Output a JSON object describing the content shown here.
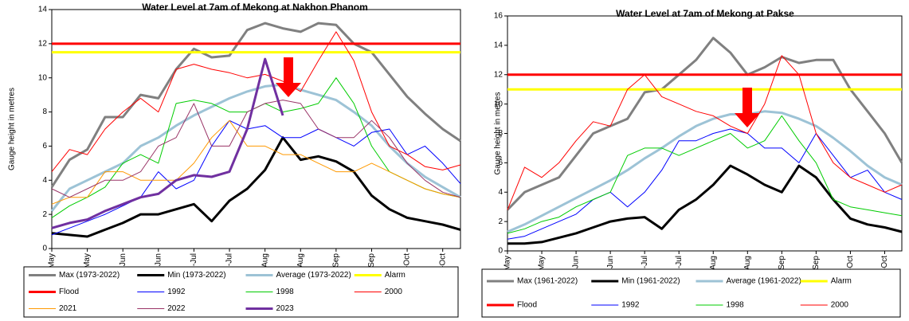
{
  "chart_data": [
    {
      "type": "line",
      "title": "Water Level at 7am of Mekong at Nakhon Phanom",
      "y_label": "Gauge height in metres",
      "categories": [
        "15-May",
        null,
        "30-May",
        null,
        "14-Jun",
        null,
        "29-Jun",
        null,
        "14-Jul",
        null,
        "29-Jul",
        null,
        "13-Aug",
        null,
        "28-Aug",
        null,
        "12-Sep",
        null,
        "27-Sep",
        null,
        "12-Oct",
        null,
        "27-Oct",
        null
      ],
      "ylim": [
        0,
        14
      ],
      "yticks": [
        0,
        2,
        4,
        6,
        8,
        10,
        12,
        14
      ],
      "series": [
        {
          "name": "Max (1973-2022)",
          "color": "#808080",
          "width": 3,
          "values": [
            3.6,
            5.2,
            5.8,
            7.7,
            7.7,
            9.0,
            8.8,
            10.5,
            11.7,
            11.2,
            11.3,
            12.8,
            13.2,
            12.9,
            12.7,
            13.2,
            13.1,
            12.0,
            11.5,
            10.2,
            8.9,
            7.9,
            7.0,
            6.3
          ]
        },
        {
          "name": "Min (1973-2022)",
          "color": "#000000",
          "width": 3,
          "values": [
            0.9,
            0.8,
            0.7,
            1.1,
            1.5,
            2.0,
            2.0,
            2.3,
            2.6,
            1.6,
            2.8,
            3.5,
            4.6,
            6.5,
            5.2,
            5.4,
            5.1,
            4.5,
            3.1,
            2.3,
            1.8,
            1.6,
            1.4,
            1.1
          ]
        },
        {
          "name": "Average (1973-2022)",
          "color": "#9dc3d6",
          "width": 3,
          "values": [
            2.2,
            3.5,
            4.0,
            4.5,
            5.0,
            6.0,
            6.5,
            7.2,
            7.8,
            8.3,
            8.8,
            9.2,
            9.5,
            9.6,
            9.3,
            9.0,
            8.7,
            8.0,
            7.2,
            6.0,
            5.0,
            4.2,
            3.6,
            3.0
          ]
        },
        {
          "name": "Alarm",
          "color": "#ffff00",
          "width": 3,
          "values": [
            11.5,
            11.5,
            11.5,
            11.5,
            11.5,
            11.5,
            11.5,
            11.5,
            11.5,
            11.5,
            11.5,
            11.5,
            11.5,
            11.5,
            11.5,
            11.5,
            11.5,
            11.5,
            11.5,
            11.5,
            11.5,
            11.5,
            11.5,
            11.5
          ]
        },
        {
          "name": "Flood",
          "color": "#ff0000",
          "width": 3,
          "values": [
            12,
            12,
            12,
            12,
            12,
            12,
            12,
            12,
            12,
            12,
            12,
            12,
            12,
            12,
            12,
            12,
            12,
            12,
            12,
            12,
            12,
            12,
            12,
            12
          ]
        },
        {
          "name": "1992",
          "color": "#0000ff",
          "width": 1,
          "values": [
            0.8,
            1.2,
            1.6,
            2.0,
            2.5,
            3.0,
            4.5,
            3.5,
            4.0,
            6.0,
            7.5,
            7.0,
            7.2,
            6.5,
            6.5,
            7.0,
            6.5,
            6.0,
            6.8,
            7.0,
            5.5,
            6.0,
            5.0,
            3.8
          ]
        },
        {
          "name": "1998",
          "color": "#00cc00",
          "width": 1,
          "values": [
            1.8,
            2.5,
            3.0,
            3.6,
            5.0,
            5.5,
            5.0,
            8.5,
            8.7,
            8.5,
            8.0,
            8.0,
            8.5,
            8.0,
            8.2,
            8.5,
            10.0,
            8.5,
            6.0,
            4.5,
            4.0,
            3.5,
            3.2,
            3.0
          ]
        },
        {
          "name": "2000",
          "color": "#ff0000",
          "width": 1,
          "values": [
            4.5,
            5.8,
            5.5,
            7.0,
            8.0,
            8.8,
            8.0,
            10.5,
            10.8,
            10.5,
            10.3,
            10.0,
            10.2,
            9.8,
            9.2,
            11.0,
            12.7,
            11.0,
            8.0,
            6.0,
            5.5,
            4.8,
            4.6,
            4.9
          ]
        },
        {
          "name": "2021",
          "color": "#ff9900",
          "width": 1,
          "values": [
            2.6,
            3.0,
            3.0,
            4.5,
            4.5,
            4.0,
            4.0,
            4.0,
            5.0,
            6.5,
            7.5,
            6.0,
            6.0,
            5.5,
            5.5,
            5.0,
            4.5,
            4.5,
            5.0,
            4.5,
            4.0,
            3.5,
            3.2,
            3.0
          ]
        },
        {
          "name": "2022",
          "color": "#993366",
          "width": 1,
          "values": [
            3.5,
            3.0,
            3.5,
            4.0,
            4.0,
            4.5,
            6.0,
            6.5,
            8.5,
            6.0,
            6.0,
            8.0,
            8.5,
            8.7,
            8.5,
            7.0,
            6.5,
            6.5,
            7.5,
            6.5,
            5.0,
            4.0,
            3.3,
            3.0
          ]
        },
        {
          "name": "2023",
          "color": "#7030a0",
          "width": 3,
          "values": [
            1.2,
            1.5,
            1.7,
            2.2,
            2.6,
            3.0,
            3.2,
            4.0,
            4.3,
            4.2,
            4.5,
            7.0,
            11.1,
            7.8,
            null,
            null,
            null,
            null,
            null,
            null,
            null,
            null,
            null,
            null
          ]
        }
      ]
    },
    {
      "type": "line",
      "title": "Water Level at 7am of Mekong at Pakse",
      "y_label": "Gauge height in metres",
      "categories": [
        "15-May",
        null,
        "30-May",
        null,
        "14-Jun",
        null,
        "29-Jun",
        null,
        "14-Jul",
        null,
        "29-Jul",
        null,
        "13-Aug",
        null,
        "28-Aug",
        null,
        "12-Sep",
        null,
        "27-Sep",
        null,
        "12-Oct",
        null,
        "27-Oct",
        null
      ],
      "ylim": [
        0,
        16
      ],
      "yticks": [
        0,
        2,
        4,
        6,
        8,
        10,
        12,
        14,
        16
      ],
      "series": [
        {
          "name": "Max (1961-2022)",
          "color": "#808080",
          "width": 3,
          "values": [
            2.8,
            4.0,
            4.5,
            5.0,
            6.5,
            8.0,
            8.5,
            9.0,
            10.8,
            11.0,
            12.0,
            13.0,
            14.5,
            13.5,
            12.0,
            12.5,
            13.2,
            12.8,
            13.0,
            13.0,
            11.0,
            9.5,
            8.0,
            6.0
          ]
        },
        {
          "name": "Min (1961-2022)",
          "color": "#000000",
          "width": 3,
          "values": [
            0.5,
            0.5,
            0.6,
            0.9,
            1.2,
            1.6,
            2.0,
            2.2,
            2.3,
            1.5,
            2.8,
            3.5,
            4.5,
            5.8,
            5.2,
            4.5,
            4.0,
            5.8,
            5.0,
            3.5,
            2.2,
            1.8,
            1.6,
            1.3
          ]
        },
        {
          "name": "Average (1961-2022)",
          "color": "#9dc3d6",
          "width": 3,
          "values": [
            1.3,
            1.8,
            2.4,
            3.0,
            3.6,
            4.2,
            4.8,
            5.5,
            6.3,
            7.0,
            7.8,
            8.5,
            9.0,
            9.3,
            9.3,
            9.5,
            9.4,
            9.0,
            8.5,
            7.7,
            6.8,
            5.8,
            5.0,
            4.5
          ]
        },
        {
          "name": "Alarm",
          "color": "#ffff00",
          "width": 3,
          "values": [
            11,
            11,
            11,
            11,
            11,
            11,
            11,
            11,
            11,
            11,
            11,
            11,
            11,
            11,
            11,
            11,
            11,
            11,
            11,
            11,
            11,
            11,
            11,
            11
          ]
        },
        {
          "name": "Flood",
          "color": "#ff0000",
          "width": 3,
          "values": [
            12,
            12,
            12,
            12,
            12,
            12,
            12,
            12,
            12,
            12,
            12,
            12,
            12,
            12,
            12,
            12,
            12,
            12,
            12,
            12,
            12,
            12,
            12,
            12
          ]
        },
        {
          "name": "1992",
          "color": "#0000ff",
          "width": 1,
          "values": [
            0.8,
            1.0,
            1.5,
            2.0,
            2.5,
            3.5,
            4.0,
            3.0,
            4.0,
            5.5,
            7.5,
            7.5,
            8.0,
            8.3,
            8.0,
            7.0,
            7.0,
            6.0,
            8.0,
            6.5,
            5.0,
            5.5,
            4.0,
            3.5
          ]
        },
        {
          "name": "1998",
          "color": "#00cc00",
          "width": 1,
          "values": [
            1.2,
            1.5,
            2.0,
            2.3,
            3.0,
            3.5,
            4.0,
            6.5,
            7.0,
            7.0,
            6.5,
            7.0,
            7.5,
            8.0,
            7.0,
            7.5,
            9.2,
            7.5,
            6.0,
            3.5,
            3.0,
            2.8,
            2.6,
            2.4
          ]
        },
        {
          "name": "2000",
          "color": "#ff0000",
          "width": 1,
          "values": [
            2.8,
            5.7,
            5.0,
            6.0,
            7.5,
            8.8,
            8.5,
            11.0,
            12.0,
            10.5,
            10.0,
            9.5,
            9.2,
            8.5,
            8.0,
            10.0,
            13.3,
            12.0,
            8.0,
            6.0,
            5.0,
            4.5,
            4.0,
            4.5
          ]
        }
      ]
    }
  ]
}
